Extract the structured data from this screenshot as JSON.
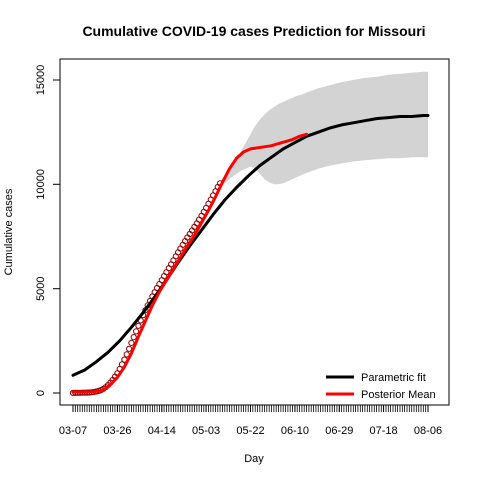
{
  "chart_data": {
    "type": "line",
    "title": "Cumulative COVID-19 cases Prediction for Missouri",
    "xlabel": "Day",
    "ylabel": "Cumulative cases",
    "x_tick_labels": [
      "03-07",
      "03-26",
      "04-14",
      "05-03",
      "05-22",
      "06-10",
      "06-29",
      "07-18",
      "08-06"
    ],
    "x_tick_days": [
      0,
      19,
      38,
      57,
      76,
      95,
      114,
      133,
      152
    ],
    "y_ticks": [
      0,
      5000,
      10000,
      15000
    ],
    "xlim": [
      0,
      152
    ],
    "ylim": [
      -250,
      15700
    ],
    "legend_position": "bottom-right",
    "colors": {
      "parametric": "#000000",
      "posterior": "#ff0000",
      "band": "#d3d3d3",
      "observed": "#8b0000"
    },
    "band": {
      "name": "",
      "x": [
        62,
        64,
        66,
        68,
        70,
        72,
        74,
        76,
        78,
        80,
        82,
        84,
        86,
        88,
        90,
        92,
        94,
        96,
        98,
        100,
        105,
        110,
        115,
        120,
        125,
        130,
        135,
        140,
        145,
        150,
        152
      ],
      "lower": [
        9750,
        9950,
        10150,
        10350,
        10500,
        10650,
        10750,
        10850,
        10750,
        10500,
        10250,
        10100,
        10000,
        10000,
        10050,
        10150,
        10250,
        10350,
        10450,
        10550,
        10750,
        10900,
        11000,
        11100,
        11150,
        11200,
        11250,
        11250,
        11300,
        11300,
        11300
      ],
      "upper": [
        9750,
        10050,
        10400,
        10800,
        11200,
        11600,
        12000,
        12400,
        12800,
        13100,
        13350,
        13550,
        13700,
        13850,
        13950,
        14050,
        14150,
        14250,
        14300,
        14400,
        14600,
        14750,
        14900,
        15000,
        15100,
        15150,
        15250,
        15300,
        15350,
        15400,
        15400
      ]
    },
    "series": [
      {
        "name": "Parametric fit",
        "x": [
          0,
          5,
          10,
          15,
          20,
          25,
          30,
          35,
          40,
          45,
          50,
          55,
          60,
          65,
          70,
          75,
          80,
          85,
          90,
          95,
          100,
          105,
          110,
          115,
          120,
          125,
          130,
          135,
          140,
          145,
          150,
          152
        ],
        "values": [
          850,
          1100,
          1500,
          1950,
          2500,
          3150,
          3850,
          4600,
          5400,
          6250,
          7050,
          7800,
          8550,
          9250,
          9850,
          10400,
          10900,
          11300,
          11700,
          12000,
          12300,
          12500,
          12700,
          12850,
          12950,
          13050,
          13150,
          13200,
          13250,
          13250,
          13300,
          13300
        ]
      },
      {
        "name": "Posterior Mean",
        "x": [
          0,
          5,
          10,
          13,
          16,
          19,
          22,
          25,
          28,
          31,
          34,
          37,
          40,
          43,
          46,
          49,
          52,
          55,
          58,
          61,
          64,
          67,
          70,
          73,
          76,
          79,
          82,
          85,
          88,
          91,
          94,
          97,
          100
        ],
        "values": [
          50,
          50,
          60,
          150,
          400,
          750,
          1250,
          1900,
          2700,
          3450,
          4200,
          4850,
          5400,
          5950,
          6500,
          7050,
          7550,
          8150,
          8750,
          9400,
          10100,
          10750,
          11250,
          11550,
          11700,
          11750,
          11800,
          11850,
          11950,
          12050,
          12150,
          12300,
          12400
        ]
      }
    ],
    "observed": {
      "name": "",
      "x": [
        0,
        1,
        2,
        3,
        4,
        5,
        6,
        7,
        8,
        9,
        10,
        11,
        12,
        13,
        14,
        15,
        16,
        17,
        18,
        19,
        20,
        21,
        22,
        23,
        24,
        25,
        26,
        27,
        28,
        29,
        30,
        31,
        32,
        33,
        34,
        35,
        36,
        37,
        38,
        39,
        40,
        41,
        42,
        43,
        44,
        45,
        46,
        47,
        48,
        49,
        50,
        51,
        52,
        53,
        54,
        55,
        56,
        57,
        58,
        59,
        60,
        61,
        62,
        63
      ],
      "values": [
        5,
        5,
        8,
        10,
        12,
        15,
        20,
        25,
        35,
        50,
        70,
        100,
        140,
        200,
        280,
        380,
        500,
        630,
        780,
        950,
        1150,
        1370,
        1600,
        1850,
        2120,
        2400,
        2680,
        2950,
        3220,
        3480,
        3730,
        3970,
        4200,
        4420,
        4630,
        4830,
        5030,
        5220,
        5410,
        5600,
        5790,
        5980,
        6170,
        6360,
        6550,
        6740,
        6920,
        7100,
        7280,
        7450,
        7620,
        7790,
        7960,
        8130,
        8310,
        8490,
        8680,
        8870,
        9070,
        9270,
        9470,
        9670,
        9870,
        10050
      ]
    }
  }
}
